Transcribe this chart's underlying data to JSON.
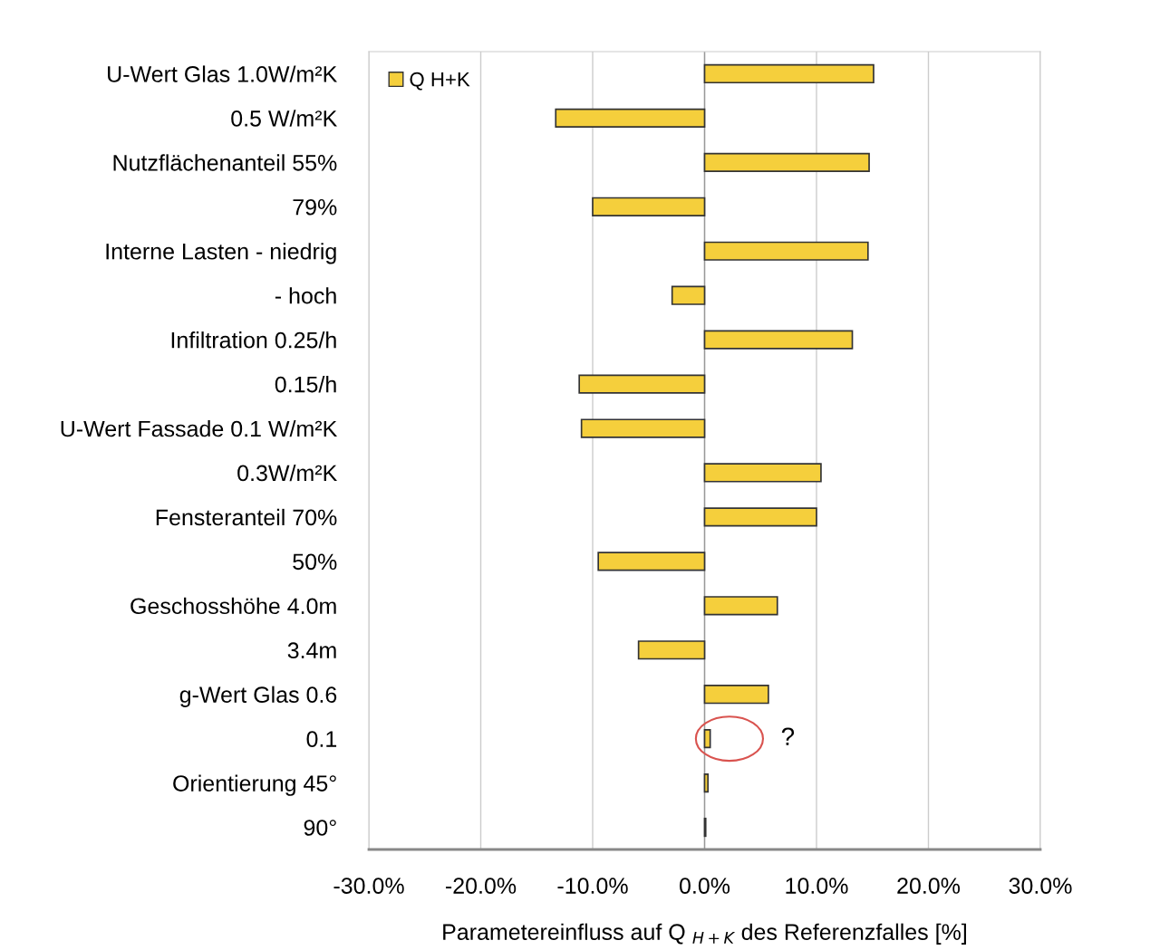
{
  "chart_data": {
    "type": "bar",
    "orientation": "horizontal",
    "xlabel": "Parametereinfluss auf Q $_{H+K}$ des Referenzfalles [%]",
    "categories": [
      "U-Wert Glas 1.0W/m²K",
      "0.5 W/m²K",
      "Nutzflächenanteil 55%",
      "79%",
      "Interne Lasten - niedrig",
      "- hoch",
      "Infiltration 0.25/h",
      "0.15/h",
      "U-Wert Fassade 0.1 W/m²K",
      "0.3W/m²K",
      "Fensteranteil 70%",
      "50%",
      "Geschosshöhe 4.0m",
      "3.4m",
      "g-Wert Glas 0.6",
      "0.1",
      "Orientierung 45°",
      "90°"
    ],
    "series": [
      {
        "name": "Q H+K",
        "color": "#f5cf3c",
        "values": [
          15.1,
          -13.3,
          14.7,
          -10.0,
          14.6,
          -2.9,
          13.2,
          -11.2,
          -11.0,
          10.4,
          10.0,
          -9.5,
          6.5,
          -5.9,
          5.7,
          0.5,
          0.3,
          0.1
        ]
      }
    ],
    "xlim": [
      -30,
      30
    ],
    "xticks": [
      {
        "value": -30,
        "label": "-30.0%"
      },
      {
        "value": -20,
        "label": "-20.0%"
      },
      {
        "value": -10,
        "label": "-10.0%"
      },
      {
        "value": 0,
        "label": "0.0%"
      },
      {
        "value": 10,
        "label": "10.0%"
      },
      {
        "value": 20,
        "label": "20.0%"
      },
      {
        "value": 30,
        "label": "30.0%"
      }
    ],
    "grid": "x",
    "legend": "top left",
    "annotations": [
      "?"
    ]
  }
}
